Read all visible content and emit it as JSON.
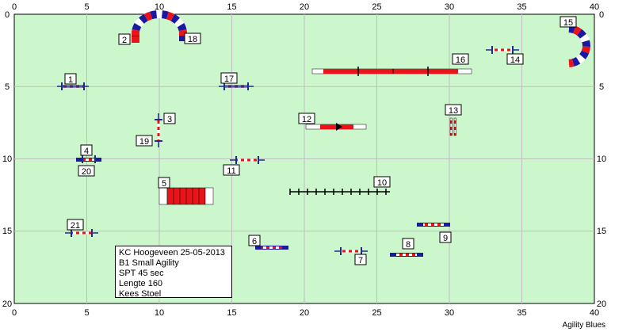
{
  "axes": {
    "x_ticks": [
      "0",
      "5",
      "10",
      "15",
      "20",
      "25",
      "30",
      "35",
      "40"
    ],
    "y_ticks": [
      "0",
      "5",
      "10",
      "15",
      "20"
    ]
  },
  "colors": {
    "field": "#ccf7cc",
    "pole": "#1e2a8c",
    "red": "#e8141a",
    "blue": "#1a1aa0"
  },
  "obstacles": [
    {
      "n": "1",
      "type": "jump"
    },
    {
      "n": "2",
      "type": "tunnel-start"
    },
    {
      "n": "3",
      "type": "jump-vertical"
    },
    {
      "n": "4",
      "type": "jump"
    },
    {
      "n": "5",
      "type": "chute"
    },
    {
      "n": "6",
      "type": "jump"
    },
    {
      "n": "7",
      "type": "jump"
    },
    {
      "n": "8",
      "type": "jump"
    },
    {
      "n": "9",
      "type": "jump"
    },
    {
      "n": "10",
      "type": "weave"
    },
    {
      "n": "11",
      "type": "jump"
    },
    {
      "n": "12",
      "type": "seesaw"
    },
    {
      "n": "13",
      "type": "jump-vertical"
    },
    {
      "n": "14",
      "type": "jump"
    },
    {
      "n": "15",
      "type": "tunnel"
    },
    {
      "n": "16",
      "type": "dogwalk"
    },
    {
      "n": "17",
      "type": "jump"
    },
    {
      "n": "18",
      "type": "tunnel-end"
    },
    {
      "n": "19",
      "type": "jump-vertical"
    },
    {
      "n": "20",
      "type": "jump"
    },
    {
      "n": "21",
      "type": "jump"
    }
  ],
  "info": {
    "line1": "KC Hoogeveen 25-05-2013",
    "line2": "B1 Small Agility",
    "line3": "SPT 45 sec",
    "line4": "Lengte 160",
    "line5": "Kees Stoel"
  },
  "footer": "Agility Blues"
}
